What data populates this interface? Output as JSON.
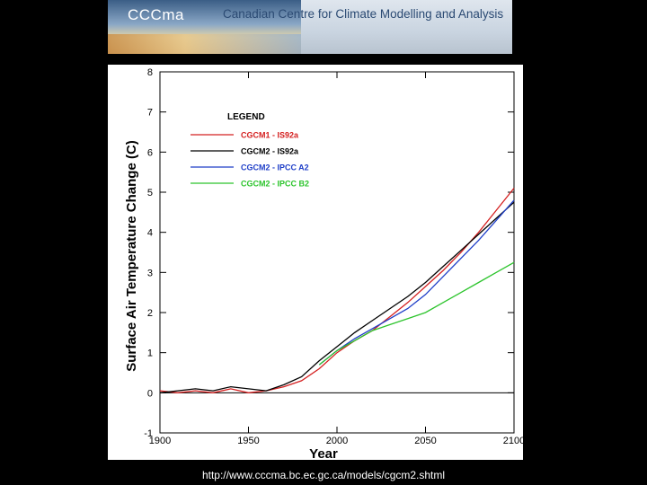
{
  "banner": {
    "logo": "CCCma",
    "title": "Canadian Centre for Climate Modelling and Analysis"
  },
  "caption": "http://www.cccma.bc.ec.gc.ca/models/cgcm2.shtml",
  "colors": {
    "background": "#000000",
    "red": "#d42020",
    "black": "#000000",
    "blue": "#1f3fc8",
    "green": "#2cc42c"
  },
  "chart_data": {
    "type": "line",
    "title": "",
    "xlabel": "Year",
    "ylabel": "Surface Air Temperature Change (C)",
    "xlim": [
      1900,
      2100
    ],
    "ylim": [
      -1,
      8
    ],
    "xticks": [
      1900,
      1950,
      2000,
      2050,
      2100
    ],
    "xtick_labels": [
      "1900",
      "1950",
      "2000",
      "2050",
      "2100"
    ],
    "yticks": [
      -1,
      0,
      1,
      2,
      3,
      4,
      5,
      6,
      7,
      8
    ],
    "ytick_labels": [
      "-1",
      "0",
      "1",
      "2",
      "3",
      "4",
      "5",
      "6",
      "7",
      "8"
    ],
    "legend_title": "LEGEND",
    "legend_position": "top-left",
    "zero_line": 0,
    "series": [
      {
        "name": "CGCM1 - IS92a",
        "color": "#d42020",
        "x": [
          1900,
          1910,
          1920,
          1930,
          1940,
          1950,
          1960,
          1970,
          1980,
          1990,
          2000,
          2010,
          2020,
          2030,
          2040,
          2050,
          2060,
          2070,
          2080,
          2090,
          2100
        ],
        "y": [
          0.05,
          0.0,
          0.05,
          0.0,
          0.1,
          0.0,
          0.05,
          0.15,
          0.3,
          0.6,
          1.0,
          1.3,
          1.55,
          1.9,
          2.25,
          2.65,
          3.05,
          3.5,
          4.0,
          4.55,
          5.1
        ]
      },
      {
        "name": "CGCM2 - IS92a",
        "color": "#000000",
        "x": [
          1900,
          1910,
          1920,
          1930,
          1940,
          1950,
          1960,
          1970,
          1980,
          1990,
          2000,
          2010,
          2020,
          2030,
          2040,
          2050,
          2060,
          2070,
          2080,
          2090,
          2100
        ],
        "y": [
          0.0,
          0.05,
          0.1,
          0.05,
          0.15,
          0.1,
          0.05,
          0.2,
          0.4,
          0.8,
          1.15,
          1.5,
          1.8,
          2.1,
          2.4,
          2.75,
          3.15,
          3.55,
          3.95,
          4.35,
          4.75
        ]
      },
      {
        "name": "CGCM2 - IPCC A2",
        "color": "#1f3fc8",
        "x": [
          1990,
          2000,
          2010,
          2020,
          2030,
          2040,
          2050,
          2060,
          2070,
          2080,
          2090,
          2100
        ],
        "y": [
          0.7,
          1.05,
          1.35,
          1.6,
          1.85,
          2.1,
          2.45,
          2.9,
          3.35,
          3.8,
          4.3,
          4.8
        ]
      },
      {
        "name": "CGCM2 - IPCC B2",
        "color": "#2cc42c",
        "x": [
          1990,
          2000,
          2010,
          2020,
          2030,
          2040,
          2050,
          2060,
          2070,
          2080,
          2090,
          2100
        ],
        "y": [
          0.7,
          1.05,
          1.3,
          1.55,
          1.7,
          1.85,
          2.0,
          2.25,
          2.5,
          2.75,
          3.0,
          3.25
        ]
      }
    ]
  }
}
